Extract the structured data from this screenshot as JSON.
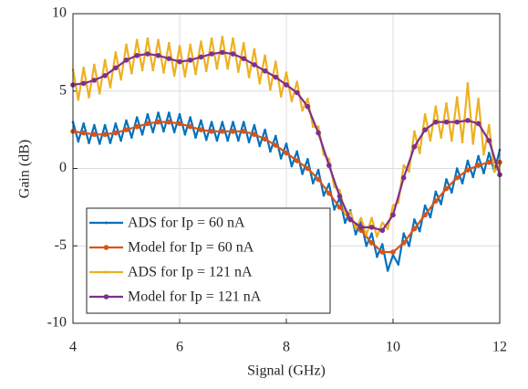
{
  "chart_data": {
    "type": "line",
    "xlabel": "Signal (GHz)",
    "ylabel": "Gain (dB)",
    "xlim": [
      4,
      12
    ],
    "xticks": [
      4,
      6,
      8,
      10,
      12
    ],
    "ylim": [
      -10,
      10
    ],
    "yticks": [
      -10,
      -5,
      0,
      5,
      10
    ],
    "grid": true,
    "legend": "lower left",
    "series": [
      {
        "name": "ADS for Ip = 60 nA",
        "color": "#0072BD",
        "marker": "small",
        "x": [
          4.0,
          4.1,
          4.2,
          4.3,
          4.4,
          4.5,
          4.6,
          4.7,
          4.8,
          4.9,
          5.0,
          5.1,
          5.2,
          5.3,
          5.4,
          5.5,
          5.6,
          5.7,
          5.8,
          5.9,
          6.0,
          6.1,
          6.2,
          6.3,
          6.4,
          6.5,
          6.6,
          6.7,
          6.8,
          6.9,
          7.0,
          7.1,
          7.2,
          7.3,
          7.4,
          7.5,
          7.6,
          7.7,
          7.8,
          7.9,
          8.0,
          8.1,
          8.2,
          8.3,
          8.4,
          8.5,
          8.6,
          8.7,
          8.8,
          8.9,
          9.0,
          9.1,
          9.2,
          9.3,
          9.4,
          9.5,
          9.6,
          9.7,
          9.8,
          9.9,
          10.0,
          10.1,
          10.2,
          10.3,
          10.4,
          10.5,
          10.6,
          10.7,
          10.8,
          10.9,
          11.0,
          11.1,
          11.2,
          11.3,
          11.4,
          11.5,
          11.6,
          11.7,
          11.8,
          11.9,
          12.0
        ],
        "values": [
          3.0,
          1.75,
          2.9,
          1.65,
          2.8,
          1.6,
          2.8,
          1.65,
          2.9,
          1.8,
          3.1,
          2.0,
          3.3,
          2.2,
          3.5,
          2.35,
          3.6,
          2.4,
          3.6,
          2.35,
          3.5,
          2.2,
          3.3,
          2.0,
          3.1,
          1.85,
          3.0,
          1.8,
          3.0,
          1.8,
          3.0,
          1.8,
          3.0,
          1.7,
          2.8,
          1.45,
          2.5,
          1.1,
          2.1,
          0.65,
          1.6,
          0.15,
          1.1,
          -0.35,
          0.6,
          -0.95,
          -0.1,
          -1.75,
          -1.0,
          -2.65,
          -1.9,
          -3.5,
          -2.7,
          -4.25,
          -3.4,
          -5.0,
          -4.2,
          -5.7,
          -4.9,
          -6.6,
          -5.6,
          -6.2,
          -4.2,
          -5.0,
          -3.3,
          -4.05,
          -2.4,
          -3.15,
          -1.5,
          -2.3,
          -0.7,
          -1.55,
          0.0,
          -0.95,
          0.5,
          -0.55,
          0.8,
          -0.3,
          1.0,
          -0.2,
          1.2
        ]
      },
      {
        "name": "Model for Ip = 60 nA",
        "color": "#D95319",
        "marker": "dot",
        "x": [
          4.0,
          4.2,
          4.4,
          4.6,
          4.8,
          5.0,
          5.2,
          5.4,
          5.6,
          5.8,
          6.0,
          6.2,
          6.4,
          6.6,
          6.8,
          7.0,
          7.2,
          7.4,
          7.6,
          7.8,
          8.0,
          8.2,
          8.4,
          8.6,
          8.8,
          9.0,
          9.2,
          9.4,
          9.6,
          9.8,
          10.0,
          10.2,
          10.4,
          10.6,
          10.8,
          11.0,
          11.2,
          11.4,
          11.6,
          11.8,
          12.0
        ],
        "values": [
          2.4,
          2.3,
          2.2,
          2.2,
          2.3,
          2.5,
          2.7,
          2.9,
          3.0,
          3.0,
          2.9,
          2.7,
          2.5,
          2.4,
          2.4,
          2.4,
          2.4,
          2.2,
          1.9,
          1.5,
          1.0,
          0.5,
          0.0,
          -0.7,
          -1.6,
          -2.5,
          -3.3,
          -4.0,
          -4.8,
          -5.4,
          -5.4,
          -4.8,
          -3.9,
          -3.0,
          -2.1,
          -1.3,
          -0.6,
          -0.1,
          0.2,
          0.4,
          0.4
        ]
      },
      {
        "name": "ADS for Ip = 121 nA",
        "color": "#EDB120",
        "marker": "small",
        "x": [
          4.0,
          4.1,
          4.2,
          4.3,
          4.4,
          4.5,
          4.6,
          4.7,
          4.8,
          4.9,
          5.0,
          5.1,
          5.2,
          5.3,
          5.4,
          5.5,
          5.6,
          5.7,
          5.8,
          5.9,
          6.0,
          6.1,
          6.2,
          6.3,
          6.4,
          6.5,
          6.6,
          6.7,
          6.8,
          6.9,
          7.0,
          7.1,
          7.2,
          7.3,
          7.4,
          7.5,
          7.6,
          7.7,
          7.8,
          7.9,
          8.0,
          8.1,
          8.2,
          8.3,
          8.4,
          8.5,
          8.6,
          8.7,
          8.8,
          8.9,
          9.0,
          9.1,
          9.2,
          9.3,
          9.4,
          9.5,
          9.6,
          9.7,
          9.8,
          9.9,
          10.0,
          10.1,
          10.2,
          10.3,
          10.4,
          10.5,
          10.6,
          10.7,
          10.8,
          10.9,
          11.0,
          11.1,
          11.2,
          11.3,
          11.4,
          11.5,
          11.6,
          11.7,
          11.8,
          11.9,
          12.0
        ],
        "values": [
          6.4,
          4.45,
          6.5,
          4.6,
          6.7,
          4.85,
          7.0,
          5.25,
          7.5,
          5.75,
          8.0,
          6.15,
          8.3,
          6.35,
          8.4,
          6.35,
          8.3,
          6.2,
          8.1,
          6.0,
          7.9,
          5.95,
          8.0,
          6.1,
          8.2,
          6.3,
          8.4,
          6.45,
          8.5,
          6.45,
          8.4,
          6.25,
          8.1,
          5.9,
          7.7,
          5.5,
          7.3,
          5.1,
          6.9,
          4.65,
          6.2,
          4.35,
          5.6,
          3.75,
          4.5,
          2.7,
          2.7,
          0.9,
          0.6,
          -1.2,
          -1.4,
          -2.9,
          -2.8,
          -3.9,
          -3.2,
          -4.3,
          -3.2,
          -4.4,
          -3.5,
          -3.9,
          -2.4,
          -2.2,
          0.2,
          -0.2,
          2.4,
          1.0,
          3.5,
          1.8,
          4.0,
          2.0,
          4.2,
          1.8,
          4.6,
          1.7,
          5.5,
          1.6,
          4.5,
          0.9,
          2.8,
          -0.2,
          0.2
        ]
      },
      {
        "name": "Model for Ip = 121 nA",
        "color": "#7E2F8E",
        "marker": "dot",
        "x": [
          4.0,
          4.2,
          4.4,
          4.6,
          4.8,
          5.0,
          5.2,
          5.4,
          5.6,
          5.8,
          6.0,
          6.2,
          6.4,
          6.6,
          6.8,
          7.0,
          7.2,
          7.4,
          7.6,
          7.8,
          8.0,
          8.2,
          8.4,
          8.6,
          8.8,
          9.0,
          9.2,
          9.4,
          9.6,
          9.8,
          10.0,
          10.2,
          10.4,
          10.6,
          10.8,
          11.0,
          11.2,
          11.4,
          11.6,
          11.8,
          12.0
        ],
        "values": [
          5.4,
          5.5,
          5.7,
          6.0,
          6.5,
          7.0,
          7.3,
          7.4,
          7.3,
          7.1,
          6.9,
          7.0,
          7.2,
          7.4,
          7.5,
          7.4,
          7.1,
          6.7,
          6.3,
          5.9,
          5.4,
          4.9,
          4.0,
          2.3,
          0.2,
          -1.8,
          -3.3,
          -3.8,
          -3.8,
          -4.0,
          -3.0,
          -0.6,
          1.4,
          2.5,
          3.0,
          3.0,
          3.0,
          3.1,
          2.9,
          1.8,
          -0.4
        ]
      }
    ]
  }
}
